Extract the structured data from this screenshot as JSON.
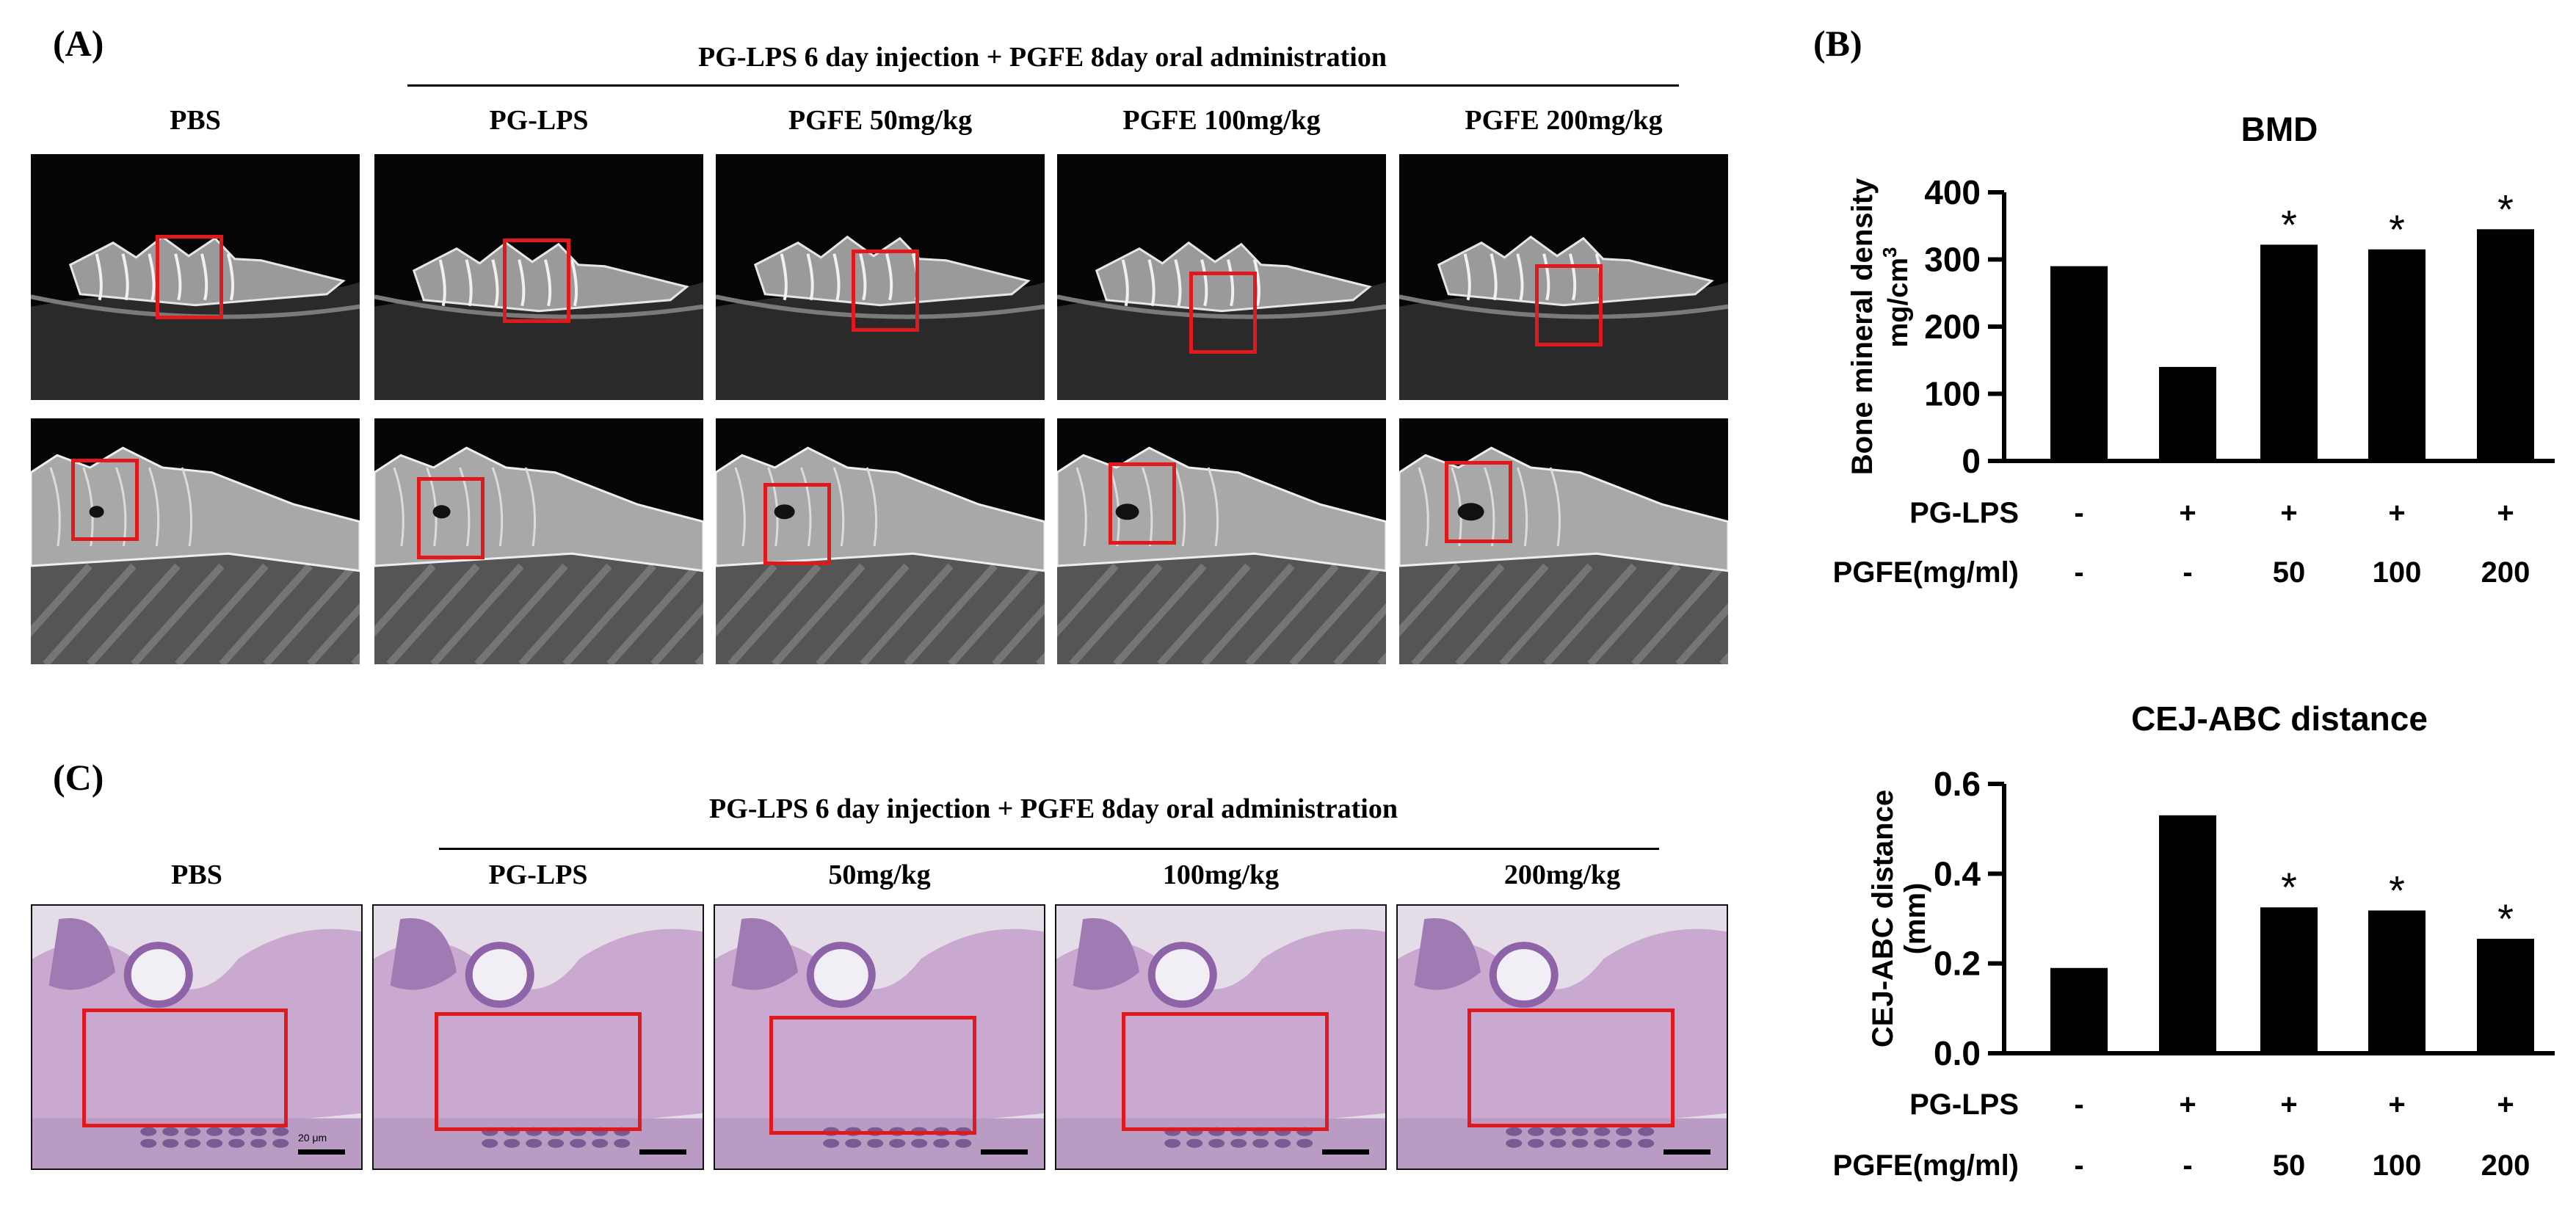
{
  "panel_a": {
    "letter": "(A)",
    "group_header": "PG-LPS 6 day injection + PGFE 8day oral administration",
    "columns": [
      "PBS",
      "PG-LPS",
      "PGFE 50mg/kg",
      "PGFE 100mg/kg",
      "PGFE 200mg/kg"
    ]
  },
  "panel_b": {
    "letter": "(B)"
  },
  "panel_c": {
    "letter": "(C)",
    "group_header": "PG-LPS 6 day injection + PGFE 8day oral administration",
    "columns": [
      "PBS",
      "PG-LPS",
      "50mg/kg",
      "100mg/kg",
      "200mg/kg"
    ],
    "scale_label": "20 μm"
  },
  "colors": {
    "roi": "#e0191c",
    "bar": "#000000",
    "histo_bg": "#e4dde8",
    "histo_tissue": "#c9a9cf"
  },
  "chart_data": [
    {
      "type": "bar",
      "title": "BMD",
      "ylabel_line1": "Bone mineral density",
      "ylabel_line2_base": "mg/cm",
      "ylabel_line2_sup": "3",
      "yticks": [
        "0",
        "100",
        "200",
        "300",
        "400"
      ],
      "ylim": [
        0,
        400
      ],
      "values": [
        290,
        140,
        322,
        315,
        345
      ],
      "significance": [
        "",
        "",
        "*",
        "*",
        "*"
      ],
      "table_rows": [
        {
          "label": "PG-LPS",
          "cells": [
            "-",
            "+",
            "+",
            "+",
            "+"
          ]
        },
        {
          "label": "PGFE(mg/ml)",
          "cells": [
            "-",
            "-",
            "50",
            "100",
            "200"
          ]
        }
      ]
    },
    {
      "type": "bar",
      "title": "CEJ-ABC distance",
      "ylabel_line1": "CEJ-ABC distance",
      "ylabel_line2": "(mm)",
      "yticks": [
        "0.0",
        "0.2",
        "0.4",
        "0.6"
      ],
      "ylim": [
        0,
        0.6
      ],
      "values": [
        0.19,
        0.53,
        0.325,
        0.318,
        0.255
      ],
      "significance": [
        "",
        "",
        "*",
        "*",
        "*"
      ],
      "table_rows": [
        {
          "label": "PG-LPS",
          "cells": [
            "-",
            "+",
            "+",
            "+",
            "+"
          ]
        },
        {
          "label": "PGFE(mg/ml)",
          "cells": [
            "-",
            "-",
            "50",
            "100",
            "200"
          ]
        }
      ]
    }
  ]
}
